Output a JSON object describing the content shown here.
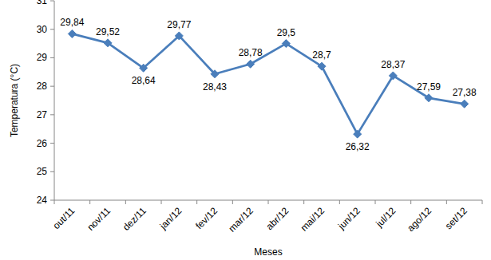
{
  "chart_data": {
    "type": "line",
    "x_label": "Meses",
    "y_label": "Temperatura (°C)",
    "categories": [
      "out/11",
      "nov/11",
      "dez/11",
      "jan/12",
      "fev/12",
      "mar/12",
      "abr/12",
      "mai/12",
      "jun/12",
      "jul/12",
      "ago/12",
      "set/12"
    ],
    "values": [
      29.84,
      29.52,
      28.64,
      29.77,
      28.43,
      28.78,
      29.5,
      28.7,
      26.32,
      28.37,
      27.59,
      27.38
    ],
    "value_labels": [
      "29,84",
      "29,52",
      "28,64",
      "29,77",
      "28,43",
      "28,78",
      "29,5",
      "28,7",
      "26,32",
      "28,37",
      "27,59",
      "27,38"
    ],
    "color": "#4a7ebb",
    "marker": "diamond",
    "ylim": [
      24,
      31
    ],
    "yticks": [
      24,
      25,
      26,
      27,
      28,
      29,
      30,
      31
    ],
    "grid": false,
    "data_labels": true
  }
}
